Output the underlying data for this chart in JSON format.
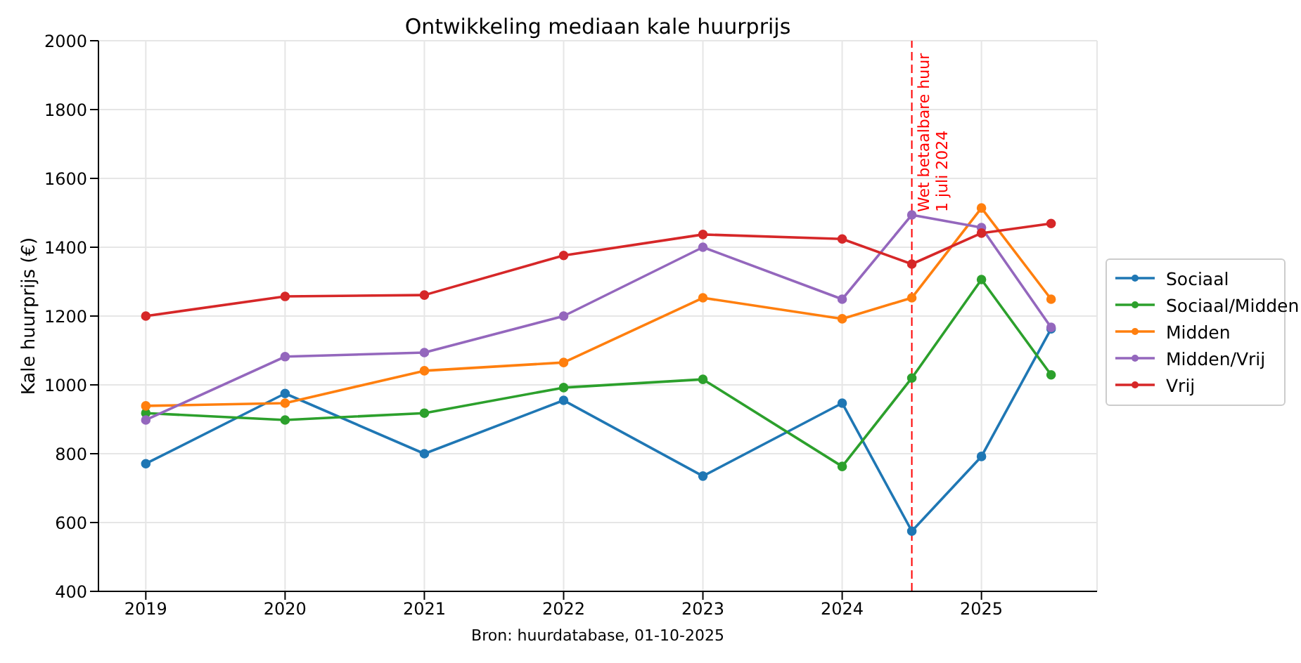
{
  "chart_data": {
    "type": "line",
    "title": "Ontwikkeling mediaan kale huurprijs",
    "ylabel": "Kale huurprijs (€)",
    "x": [
      2019,
      2020,
      2021,
      2022,
      2023,
      2024,
      2024.5,
      2025,
      2025.5
    ],
    "xlim": [
      2018.66,
      2025.83
    ],
    "xticks": [
      2019,
      2020,
      2021,
      2022,
      2023,
      2024,
      2025
    ],
    "ylim": [
      400,
      2000
    ],
    "yticks": [
      400,
      600,
      800,
      1000,
      1200,
      1400,
      1600,
      1800,
      2000
    ],
    "series": [
      {
        "name": "Sociaal",
        "color": "#1f77b4",
        "values": [
          771,
          975,
          800,
          955,
          735,
          947,
          575,
          792,
          1163
        ]
      },
      {
        "name": "Sociaal/Midden",
        "color": "#2ca02c",
        "values": [
          918,
          898,
          918,
          992,
          1016,
          763,
          1020,
          1306,
          1029
        ]
      },
      {
        "name": "Midden",
        "color": "#ff7f0e",
        "values": [
          939,
          947,
          1041,
          1065,
          1253,
          1192,
          1253,
          1514,
          1249
        ]
      },
      {
        "name": "Midden/Vrij",
        "color": "#9467bd",
        "values": [
          898,
          1082,
          1094,
          1200,
          1400,
          1249,
          1494,
          1457,
          1167
        ]
      },
      {
        "name": "Vrij",
        "color": "#d62728",
        "values": [
          1200,
          1257,
          1261,
          1376,
          1437,
          1424,
          1351,
          1441,
          1469
        ]
      }
    ],
    "ref_lines": [
      {
        "axis": "x",
        "value": 2024.5,
        "label": "Wet betaalbare huur\n1 juli 2024",
        "color": "#ff0000",
        "line_style": "dashed"
      }
    ],
    "annotations": [
      "Bron: huurdatabase, 01-10-2025"
    ],
    "grid": true,
    "legend": "right",
    "marker": "circle",
    "line_style": "solid"
  }
}
